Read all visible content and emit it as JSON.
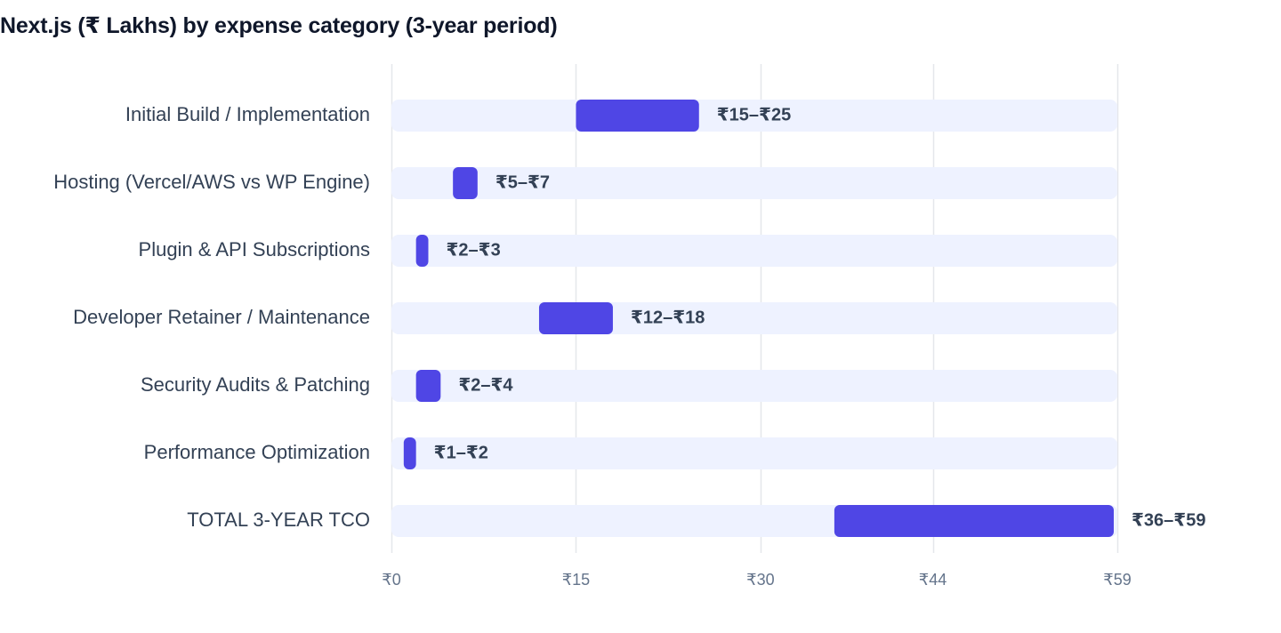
{
  "chart_data": {
    "type": "bar",
    "subtype": "floating-range",
    "title": "Next.js (₹ Lakhs) by expense category (3-year period)",
    "xlabel": "",
    "ylabel": "",
    "orientation": "horizontal",
    "grid": true,
    "legend": "none",
    "xlim": [
      0,
      59
    ],
    "x_ticks": [
      {
        "value": 0,
        "label": "₹0"
      },
      {
        "value": 15,
        "label": "₹15"
      },
      {
        "value": 30,
        "label": "₹30"
      },
      {
        "value": 44,
        "label": "₹44"
      },
      {
        "value": 59,
        "label": "₹59"
      }
    ],
    "categories": [
      "Initial Build / Implementation",
      "Hosting (Vercel/AWS vs WP Engine)",
      "Plugin & API Subscriptions",
      "Developer Retainer / Maintenance",
      "Security Audits & Patching",
      "Performance Optimization",
      "TOTAL 3-YEAR TCO"
    ],
    "ranges": [
      {
        "low": 15,
        "high": 25,
        "label": "₹15–₹25"
      },
      {
        "low": 5,
        "high": 7,
        "label": "₹5–₹7"
      },
      {
        "low": 2,
        "high": 3,
        "label": "₹2–₹3"
      },
      {
        "low": 12,
        "high": 18,
        "label": "₹12–₹18"
      },
      {
        "low": 2,
        "high": 4,
        "label": "₹2–₹4"
      },
      {
        "low": 1,
        "high": 2,
        "label": "₹1–₹2"
      },
      {
        "low": 36,
        "high": 59,
        "label": "₹36–₹59"
      }
    ],
    "colors": {
      "bar": "#4f46e5",
      "track": "#eef2ff",
      "grid": "#e5e7eb"
    }
  }
}
